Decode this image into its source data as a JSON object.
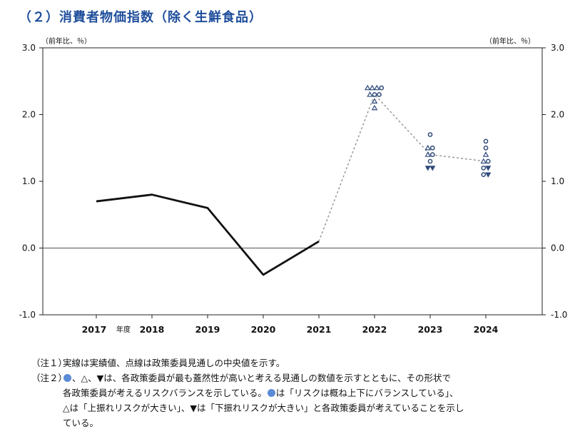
{
  "title": "（２）消費者物価指数（除く生鮮食品）",
  "chart_data": {
    "type": "line",
    "unit_label_left": "（前年比、％）",
    "unit_label_right": "（前年比、％）",
    "ylim": [
      -1.0,
      3.0
    ],
    "yticks": [
      "3.0",
      "2.0",
      "1.0",
      "0.0",
      "-1.0"
    ],
    "ytick_values": [
      3.0,
      2.0,
      1.0,
      0.0,
      -1.0
    ],
    "xticks": [
      "2017",
      "2018",
      "2019",
      "2020",
      "2021",
      "2022",
      "2023",
      "2024"
    ],
    "fiscal_label": "年度",
    "series": [
      {
        "style": "solid",
        "x": [
          "2017",
          "2018",
          "2019",
          "2020",
          "2021"
        ],
        "values": [
          0.7,
          0.8,
          0.6,
          -0.4,
          0.1
        ]
      },
      {
        "style": "dotted",
        "x": [
          "2021",
          "2022",
          "2023",
          "2024"
        ],
        "values": [
          0.1,
          2.3,
          1.4,
          1.3
        ]
      }
    ],
    "forecasts": [
      {
        "x": "2022",
        "points": [
          {
            "v": 2.4,
            "m": "up",
            "o": -1.5
          },
          {
            "v": 2.4,
            "m": "up",
            "o": -0.5
          },
          {
            "v": 2.4,
            "m": "up",
            "o": 0.5
          },
          {
            "v": 2.4,
            "m": "circle",
            "o": 1.5
          },
          {
            "v": 2.3,
            "m": "up",
            "o": -1
          },
          {
            "v": 2.3,
            "m": "circle",
            "o": 0
          },
          {
            "v": 2.3,
            "m": "circle",
            "o": 1
          },
          {
            "v": 2.2,
            "m": "up",
            "o": 0
          },
          {
            "v": 2.1,
            "m": "up",
            "o": 0
          }
        ]
      },
      {
        "x": "2023",
        "points": [
          {
            "v": 1.7,
            "m": "circle",
            "o": 0
          },
          {
            "v": 1.5,
            "m": "up",
            "o": -0.5
          },
          {
            "v": 1.5,
            "m": "circle",
            "o": 0.5
          },
          {
            "v": 1.4,
            "m": "up",
            "o": -0.5
          },
          {
            "v": 1.4,
            "m": "circle",
            "o": 0.5
          },
          {
            "v": 1.3,
            "m": "circle",
            "o": 0
          },
          {
            "v": 1.2,
            "m": "down",
            "o": -0.5
          },
          {
            "v": 1.2,
            "m": "down",
            "o": 0.5
          }
        ]
      },
      {
        "x": "2024",
        "points": [
          {
            "v": 1.6,
            "m": "circle",
            "o": 0
          },
          {
            "v": 1.5,
            "m": "circle",
            "o": 0
          },
          {
            "v": 1.4,
            "m": "up",
            "o": 0
          },
          {
            "v": 1.3,
            "m": "up",
            "o": -0.5
          },
          {
            "v": 1.3,
            "m": "circle",
            "o": 0.5
          },
          {
            "v": 1.2,
            "m": "circle",
            "o": -0.5
          },
          {
            "v": 1.2,
            "m": "down",
            "o": 0.5
          },
          {
            "v": 1.1,
            "m": "circle",
            "o": -0.5
          },
          {
            "v": 1.1,
            "m": "down",
            "o": 0.5
          }
        ]
      }
    ],
    "colors": {
      "line": "#111111",
      "dotted": "#999999",
      "marker": "#2e4a7a",
      "zero_line": "#555555",
      "title": "#1f4e9c"
    }
  },
  "notes": {
    "note1_label": "（注１）",
    "note1_text": "実線は実績値、点線は政策委員見通しの中央値を示す。",
    "note2_label": "（注２）",
    "note2_intro": "、△、▼は、各政策委員が最も蓋然性が高いと考える見通しの数値を示すとともに、その形状で",
    "note2_line2a": "各政策委員が考えるリスクバランスを示している。",
    "note2_line2b": "は「リスクは概ね上下にバランスしている」、",
    "note2_line3": "△は「上振れリスクが大きい」、▼は「下振れリスクが大きい」と各政策委員が考えていることを示し",
    "note2_line4": "ている。"
  }
}
